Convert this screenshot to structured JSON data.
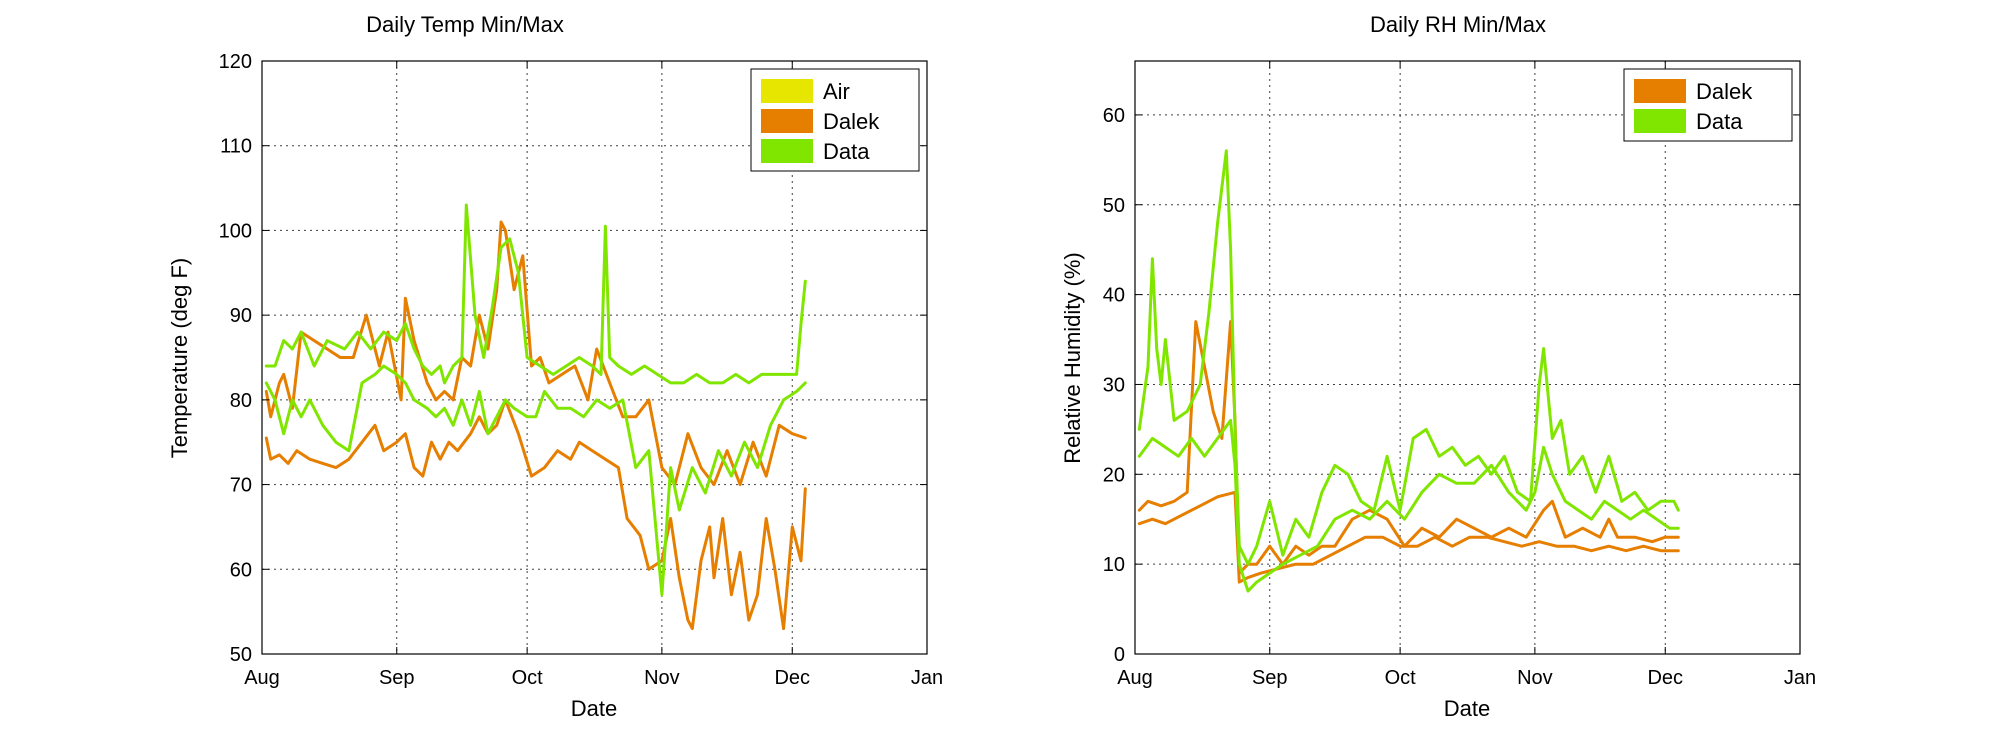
{
  "chart_data": [
    {
      "type": "line",
      "title": "Daily Temp Min/Max",
      "xlabel": "Date",
      "ylabel": "Temperature (deg F)",
      "xticks": [
        "Aug",
        "Sep",
        "Oct",
        "Nov",
        "Dec",
        "Jan"
      ],
      "x_domain": [
        "2014-08-01",
        "2015-01-01"
      ],
      "ylim": [
        50,
        120
      ],
      "yticks": [
        50,
        60,
        70,
        80,
        90,
        100,
        110,
        120
      ],
      "grid": true,
      "legend_position": "top-right",
      "legend": [
        {
          "label": "Air",
          "color": "#e6e600"
        },
        {
          "label": "Dalek",
          "color": "#e67e00"
        },
        {
          "label": "Data",
          "color": "#80e600"
        }
      ],
      "series": [
        {
          "name": "Dalek",
          "kind": "max",
          "color": "#e67e00",
          "x": [
            "2014-08-02",
            "2014-08-03",
            "2014-08-05",
            "2014-08-06",
            "2014-08-08",
            "2014-08-10",
            "2014-08-13",
            "2014-08-16",
            "2014-08-19",
            "2014-08-22",
            "2014-08-25",
            "2014-08-28",
            "2014-08-30",
            "2014-09-02",
            "2014-09-03",
            "2014-09-05",
            "2014-09-08",
            "2014-09-10",
            "2014-09-12",
            "2014-09-14",
            "2014-09-16",
            "2014-09-18",
            "2014-09-20",
            "2014-09-22",
            "2014-09-24",
            "2014-09-25",
            "2014-09-26",
            "2014-09-28",
            "2014-09-30",
            "2014-10-02",
            "2014-10-04",
            "2014-10-06",
            "2014-10-09",
            "2014-10-12",
            "2014-10-15",
            "2014-10-17",
            "2014-10-20",
            "2014-10-23",
            "2014-10-26",
            "2014-10-29",
            "2014-11-01",
            "2014-11-04",
            "2014-11-07",
            "2014-11-10",
            "2014-11-13",
            "2014-11-16",
            "2014-11-19",
            "2014-11-22",
            "2014-11-25",
            "2014-11-28",
            "2014-12-01",
            "2014-12-04"
          ],
          "values": [
            81,
            78,
            82,
            83,
            79,
            88,
            87,
            86,
            85,
            85,
            90,
            84,
            88,
            80,
            92,
            87,
            82,
            80,
            81,
            80,
            85,
            84,
            90,
            86,
            93,
            101,
            100,
            93,
            97,
            84,
            85,
            82,
            83,
            84,
            80,
            86,
            82,
            78,
            78,
            80,
            72,
            70,
            76,
            72,
            70,
            74,
            70,
            75,
            71,
            77,
            76,
            75.5
          ]
        },
        {
          "name": "Dalek",
          "kind": "min",
          "color": "#e67e00",
          "x": [
            "2014-08-02",
            "2014-08-03",
            "2014-08-05",
            "2014-08-07",
            "2014-08-09",
            "2014-08-12",
            "2014-08-15",
            "2014-08-18",
            "2014-08-21",
            "2014-08-24",
            "2014-08-27",
            "2014-08-29",
            "2014-09-01",
            "2014-09-03",
            "2014-09-05",
            "2014-09-07",
            "2014-09-09",
            "2014-09-11",
            "2014-09-13",
            "2014-09-15",
            "2014-09-18",
            "2014-09-20",
            "2014-09-22",
            "2014-09-24",
            "2014-09-26",
            "2014-09-29",
            "2014-10-02",
            "2014-10-05",
            "2014-10-08",
            "2014-10-11",
            "2014-10-13",
            "2014-10-16",
            "2014-10-19",
            "2014-10-22",
            "2014-10-24",
            "2014-10-27",
            "2014-10-29",
            "2014-11-01",
            "2014-11-03",
            "2014-11-05",
            "2014-11-07",
            "2014-11-08",
            "2014-11-10",
            "2014-11-12",
            "2014-11-13",
            "2014-11-15",
            "2014-11-17",
            "2014-11-19",
            "2014-11-21",
            "2014-11-23",
            "2014-11-25",
            "2014-11-27",
            "2014-11-29",
            "2014-12-01",
            "2014-12-03",
            "2014-12-04"
          ],
          "values": [
            75.5,
            73,
            73.5,
            72.5,
            74,
            73,
            72.5,
            72,
            73,
            75,
            77,
            74,
            75,
            76,
            72,
            71,
            75,
            73,
            75,
            74,
            76,
            78,
            76,
            77,
            80,
            76,
            71,
            72,
            74,
            73,
            75,
            74,
            73,
            72,
            66,
            64,
            60,
            61,
            66,
            59,
            54,
            53,
            61,
            65,
            59,
            66,
            57,
            62,
            54,
            57,
            66,
            60,
            53,
            65,
            61,
            69.5
          ]
        },
        {
          "name": "Data",
          "kind": "max",
          "color": "#80e600",
          "x": [
            "2014-08-02",
            "2014-08-04",
            "2014-08-06",
            "2014-08-08",
            "2014-08-10",
            "2014-08-13",
            "2014-08-16",
            "2014-08-20",
            "2014-08-23",
            "2014-08-26",
            "2014-08-29",
            "2014-09-01",
            "2014-09-03",
            "2014-09-05",
            "2014-09-07",
            "2014-09-09",
            "2014-09-11",
            "2014-09-12",
            "2014-09-14",
            "2014-09-16",
            "2014-09-17",
            "2014-09-19",
            "2014-09-21",
            "2014-09-23",
            "2014-09-25",
            "2014-09-27",
            "2014-09-29",
            "2014-10-01",
            "2014-10-04",
            "2014-10-07",
            "2014-10-10",
            "2014-10-13",
            "2014-10-16",
            "2014-10-18",
            "2014-10-19",
            "2014-10-20",
            "2014-10-22",
            "2014-10-25",
            "2014-10-28",
            "2014-10-31",
            "2014-11-03",
            "2014-11-06",
            "2014-11-09",
            "2014-11-12",
            "2014-11-15",
            "2014-11-18",
            "2014-11-21",
            "2014-11-24",
            "2014-11-27",
            "2014-11-30",
            "2014-12-02",
            "2014-12-03",
            "2014-12-04"
          ],
          "values": [
            84,
            84,
            87,
            86,
            88,
            84,
            87,
            86,
            88,
            86,
            88,
            87,
            89,
            86,
            84,
            83,
            84,
            82,
            84,
            85,
            103,
            90,
            85,
            91,
            98,
            99,
            95,
            85,
            84,
            83,
            84,
            85,
            84,
            83,
            100.5,
            85,
            84,
            83,
            84,
            83,
            82,
            82,
            83,
            82,
            82,
            83,
            82,
            83,
            83,
            83,
            83,
            89,
            94
          ]
        },
        {
          "name": "Data",
          "kind": "min",
          "color": "#80e600",
          "x": [
            "2014-08-02",
            "2014-08-04",
            "2014-08-06",
            "2014-08-08",
            "2014-08-10",
            "2014-08-12",
            "2014-08-15",
            "2014-08-18",
            "2014-08-21",
            "2014-08-24",
            "2014-08-27",
            "2014-08-29",
            "2014-09-01",
            "2014-09-03",
            "2014-09-05",
            "2014-09-08",
            "2014-09-10",
            "2014-09-12",
            "2014-09-14",
            "2014-09-16",
            "2014-09-18",
            "2014-09-20",
            "2014-09-22",
            "2014-09-24",
            "2014-09-26",
            "2014-09-28",
            "2014-10-01",
            "2014-10-03",
            "2014-10-05",
            "2014-10-08",
            "2014-10-11",
            "2014-10-14",
            "2014-10-17",
            "2014-10-20",
            "2014-10-23",
            "2014-10-26",
            "2014-10-29",
            "2014-11-01",
            "2014-11-03",
            "2014-11-05",
            "2014-11-08",
            "2014-11-11",
            "2014-11-14",
            "2014-11-17",
            "2014-11-20",
            "2014-11-23",
            "2014-11-26",
            "2014-11-29",
            "2014-12-02",
            "2014-12-04"
          ],
          "values": [
            82,
            80,
            76,
            80,
            78,
            80,
            77,
            75,
            74,
            82,
            83,
            84,
            83,
            82,
            80,
            79,
            78,
            79,
            77,
            80,
            77,
            81,
            76,
            78,
            80,
            79,
            78,
            78,
            81,
            79,
            79,
            78,
            80,
            79,
            80,
            72,
            74,
            57,
            72,
            67,
            72,
            69,
            74,
            71,
            75,
            72,
            77,
            80,
            81,
            82
          ]
        }
      ]
    },
    {
      "type": "line",
      "title": "Daily RH Min/Max",
      "xlabel": "Date",
      "ylabel": "Relative Humidity (%)",
      "xticks": [
        "Aug",
        "Sep",
        "Oct",
        "Nov",
        "Dec",
        "Jan"
      ],
      "x_domain": [
        "2014-08-01",
        "2015-01-01"
      ],
      "ylim": [
        0,
        66
      ],
      "yticks": [
        0,
        10,
        20,
        30,
        40,
        50,
        60
      ],
      "grid": true,
      "legend_position": "top-right",
      "legend": [
        {
          "label": "Dalek",
          "color": "#e67e00"
        },
        {
          "label": "Data",
          "color": "#80e600"
        }
      ],
      "series": [
        {
          "name": "Dalek",
          "kind": "max",
          "color": "#e67e00",
          "x": [
            "2014-08-02",
            "2014-08-04",
            "2014-08-07",
            "2014-08-10",
            "2014-08-13",
            "2014-08-15",
            "2014-08-17",
            "2014-08-19",
            "2014-08-21",
            "2014-08-23",
            "2014-08-24",
            "2014-08-25",
            "2014-08-27",
            "2014-08-29",
            "2014-09-01",
            "2014-09-04",
            "2014-09-07",
            "2014-09-10",
            "2014-09-13",
            "2014-09-16",
            "2014-09-20",
            "2014-09-24",
            "2014-09-28",
            "2014-10-02",
            "2014-10-06",
            "2014-10-10",
            "2014-10-14",
            "2014-10-18",
            "2014-10-22",
            "2014-10-26",
            "2014-10-30",
            "2014-11-03",
            "2014-11-05",
            "2014-11-08",
            "2014-11-12",
            "2014-11-16",
            "2014-11-18",
            "2014-11-20",
            "2014-11-24",
            "2014-11-28",
            "2014-12-01",
            "2014-12-04"
          ],
          "values": [
            16,
            17,
            16.5,
            17,
            18,
            37,
            32,
            27,
            24,
            37,
            26,
            9,
            10,
            10,
            12,
            10,
            12,
            11,
            12,
            12,
            15,
            16,
            15,
            12,
            14,
            13,
            15,
            14,
            13,
            14,
            13,
            16,
            17,
            13,
            14,
            13,
            15,
            13,
            13,
            12.5,
            13,
            13
          ]
        },
        {
          "name": "Dalek",
          "kind": "min",
          "color": "#e67e00",
          "x": [
            "2014-08-02",
            "2014-08-05",
            "2014-08-08",
            "2014-08-12",
            "2014-08-16",
            "2014-08-20",
            "2014-08-24",
            "2014-08-25",
            "2014-08-27",
            "2014-08-30",
            "2014-09-03",
            "2014-09-07",
            "2014-09-11",
            "2014-09-15",
            "2014-09-19",
            "2014-09-23",
            "2014-09-27",
            "2014-10-01",
            "2014-10-05",
            "2014-10-09",
            "2014-10-13",
            "2014-10-17",
            "2014-10-21",
            "2014-10-25",
            "2014-10-29",
            "2014-11-02",
            "2014-11-06",
            "2014-11-10",
            "2014-11-14",
            "2014-11-18",
            "2014-11-22",
            "2014-11-26",
            "2014-11-30",
            "2014-12-04"
          ],
          "values": [
            14.5,
            15,
            14.5,
            15.5,
            16.5,
            17.5,
            18,
            8,
            8.5,
            9,
            9.5,
            10,
            10,
            11,
            12,
            13,
            13,
            12,
            12,
            13,
            12,
            13,
            13,
            12.5,
            12,
            12.5,
            12,
            12,
            11.5,
            12,
            11.5,
            12,
            11.5,
            11.5
          ]
        },
        {
          "name": "Data",
          "kind": "max",
          "color": "#80e600",
          "x": [
            "2014-08-02",
            "2014-08-04",
            "2014-08-05",
            "2014-08-06",
            "2014-08-07",
            "2014-08-08",
            "2014-08-10",
            "2014-08-13",
            "2014-08-16",
            "2014-08-18",
            "2014-08-20",
            "2014-08-22",
            "2014-08-23",
            "2014-08-24",
            "2014-08-25",
            "2014-08-27",
            "2014-08-29",
            "2014-09-01",
            "2014-09-04",
            "2014-09-07",
            "2014-09-10",
            "2014-09-13",
            "2014-09-16",
            "2014-09-19",
            "2014-09-22",
            "2014-09-25",
            "2014-09-28",
            "2014-10-01",
            "2014-10-04",
            "2014-10-07",
            "2014-10-10",
            "2014-10-13",
            "2014-10-16",
            "2014-10-19",
            "2014-10-22",
            "2014-10-25",
            "2014-10-28",
            "2014-10-31",
            "2014-11-02",
            "2014-11-03",
            "2014-11-05",
            "2014-11-07",
            "2014-11-09",
            "2014-11-12",
            "2014-11-15",
            "2014-11-18",
            "2014-11-21",
            "2014-11-24",
            "2014-11-27",
            "2014-11-30",
            "2014-12-03",
            "2014-12-04"
          ],
          "values": [
            25,
            32,
            44,
            34,
            30,
            35,
            26,
            27,
            30,
            38,
            48,
            56,
            45,
            25,
            12,
            10,
            12,
            17,
            11,
            15,
            13,
            18,
            21,
            20,
            17,
            16,
            22,
            16,
            24,
            25,
            22,
            23,
            21,
            22,
            20,
            22,
            18,
            17,
            30,
            34,
            24,
            26,
            20,
            22,
            18,
            22,
            17,
            18,
            16,
            17,
            17,
            16
          ]
        },
        {
          "name": "Data",
          "kind": "min",
          "color": "#80e600",
          "x": [
            "2014-08-02",
            "2014-08-05",
            "2014-08-08",
            "2014-08-11",
            "2014-08-14",
            "2014-08-17",
            "2014-08-20",
            "2014-08-23",
            "2014-08-24",
            "2014-08-25",
            "2014-08-27",
            "2014-08-29",
            "2014-09-01",
            "2014-09-04",
            "2014-09-08",
            "2014-09-12",
            "2014-09-16",
            "2014-09-20",
            "2014-09-24",
            "2014-09-28",
            "2014-10-02",
            "2014-10-06",
            "2014-10-10",
            "2014-10-14",
            "2014-10-18",
            "2014-10-22",
            "2014-10-26",
            "2014-10-30",
            "2014-11-01",
            "2014-11-03",
            "2014-11-05",
            "2014-11-08",
            "2014-11-11",
            "2014-11-14",
            "2014-11-17",
            "2014-11-20",
            "2014-11-23",
            "2014-11-26",
            "2014-11-29",
            "2014-12-02",
            "2014-12-04"
          ],
          "values": [
            22,
            24,
            23,
            22,
            24,
            22,
            24,
            26,
            21,
            10,
            7,
            8,
            9,
            10,
            11,
            12,
            15,
            16,
            15,
            17,
            15,
            18,
            20,
            19,
            19,
            21,
            18,
            16,
            18,
            23,
            20,
            17,
            16,
            15,
            17,
            16,
            15,
            16,
            15,
            14,
            14
          ]
        }
      ]
    }
  ]
}
